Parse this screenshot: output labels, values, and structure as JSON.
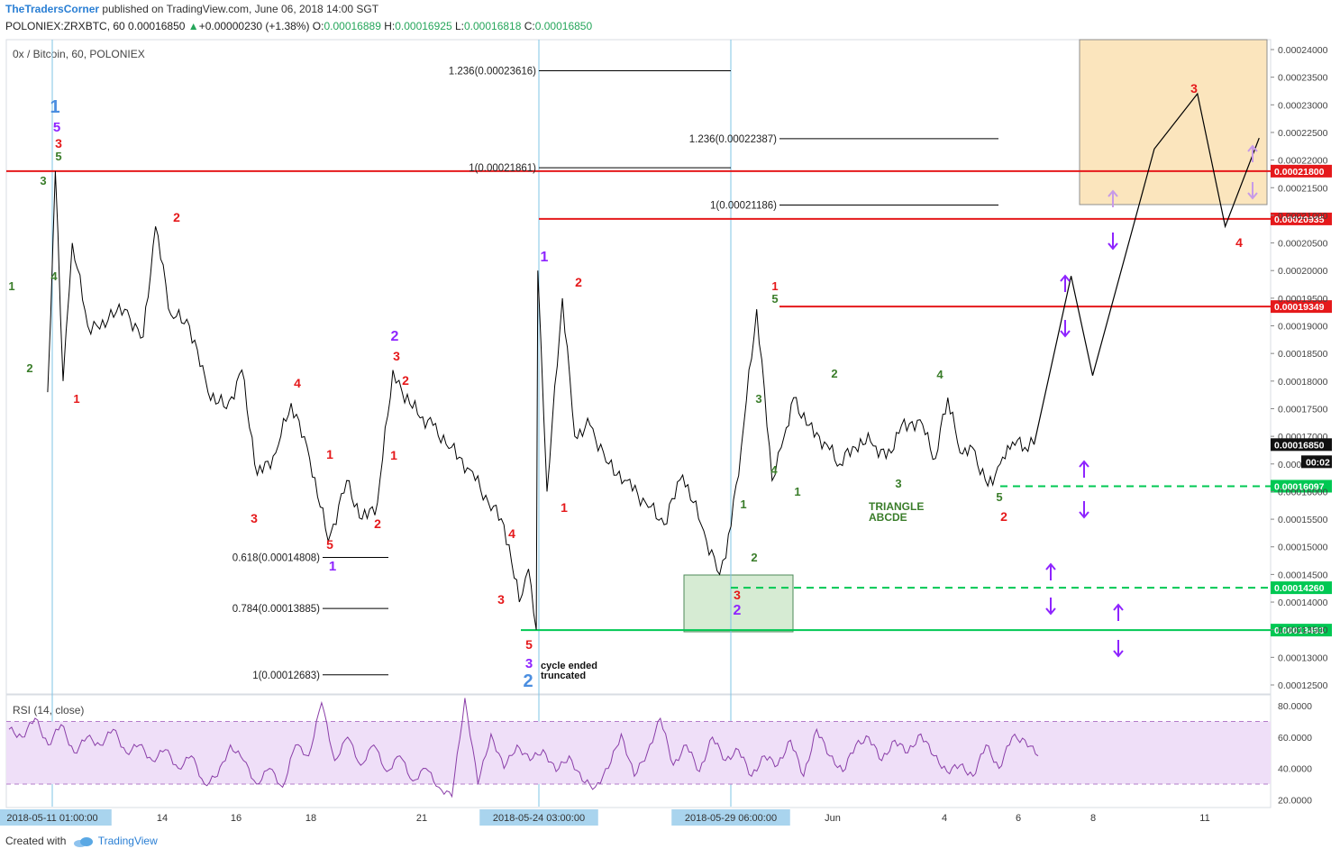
{
  "header": {
    "author": "TheTradersCorner",
    "published": "published on TradingView.com, June 06, 2018 14:00 SGT",
    "symbol": "POLONIEX:ZRXBTC, 60",
    "last": "0.00016850",
    "change_arrow": "▲",
    "change": "+0.00000230 (+1.38%)",
    "o_label": "O:",
    "o": "0.00016889",
    "h_label": "H:",
    "h": "0.00016925",
    "l_label": "L:",
    "l": "0.00016818",
    "c_label": "C:",
    "c": "0.00016850"
  },
  "pane_title": "0x / Bitcoin, 60, POLONIEX",
  "footer": {
    "created": "Created with",
    "brand": "TradingView",
    "logo_icon": "tradingview-cloud-icon"
  },
  "colors": {
    "red": "#e5191b",
    "green": "#00c853",
    "purple": "#8e24ff",
    "blue": "#4a8ee0",
    "olive": "#3a7d2a",
    "price_line": "#000000",
    "rsi": "#8a3ea8",
    "rsi_band": "#efdff8"
  },
  "chart_data": {
    "type": "line",
    "x_ticks": [
      "2018-05-11 01:00:00",
      "14",
      "16",
      "18",
      "21",
      "2018-05-24 03:00:00",
      "2018-05-29 06:00:00",
      "Jun",
      "4",
      "6",
      "8",
      "11"
    ],
    "y_ticks": [
      "0.00024000",
      "0.00023500",
      "0.00023000",
      "0.00022500",
      "0.00022000",
      "0.00021500",
      "0.00021000",
      "0.00020500",
      "0.00020000",
      "0.00019500",
      "0.00019000",
      "0.00018500",
      "0.00018000",
      "0.00017500",
      "0.00017000",
      "0.00016500",
      "0.00016000",
      "0.00015500",
      "0.00015000",
      "0.00014500",
      "0.00014000",
      "0.00013500",
      "0.00013000",
      "0.00012500"
    ],
    "ylim": [
      0.0001225,
      0.0002425
    ],
    "price_series": {
      "x": [
        "2018-05-10 22:00",
        "2018-05-11 00:00",
        "2018-05-11 03:00",
        "2018-05-11 08:00",
        "2018-05-11 14:00",
        "2018-05-12 00:00",
        "2018-05-12 06:00",
        "2018-05-13 00:00",
        "2018-05-13 12:00",
        "2018-05-13 20:00",
        "2018-05-14 06:00",
        "2018-05-14 18:00",
        "2018-05-15 06:00",
        "2018-05-15 18:00",
        "2018-05-16 04:00",
        "2018-05-16 14:00",
        "2018-05-17 02:00",
        "2018-05-17 12:00",
        "2018-05-18 00:00",
        "2018-05-18 12:00",
        "2018-05-19 00:00",
        "2018-05-19 10:00",
        "2018-05-19 20:00",
        "2018-05-20 06:00",
        "2018-05-20 12:00",
        "2018-05-20 22:00",
        "2018-05-21 08:00",
        "2018-05-21 20:00",
        "2018-05-22 08:00",
        "2018-05-22 20:00",
        "2018-05-23 06:00",
        "2018-05-23 16:00",
        "2018-05-23 22:00",
        "2018-05-24 03:00",
        "2018-05-24 04:00",
        "2018-05-24 10:00",
        "2018-05-24 20:00",
        "2018-05-25 04:00",
        "2018-05-25 14:00",
        "2018-05-26 02:00",
        "2018-05-26 14:00",
        "2018-05-27 02:00",
        "2018-05-27 14:00",
        "2018-05-28 02:00",
        "2018-05-28 14:00",
        "2018-05-29 02:00",
        "2018-05-29 06:00",
        "2018-05-29 16:00",
        "2018-05-30 02:00",
        "2018-05-30 12:00",
        "2018-05-30 18:00",
        "2018-05-31 02:00",
        "2018-05-31 12:00",
        "2018-05-31 22:00",
        "2018-06-01 08:00",
        "2018-06-01 18:00",
        "2018-06-02 04:00",
        "2018-06-02 14:00",
        "2018-06-03 00:00",
        "2018-06-03 12:00",
        "2018-06-03 22:00",
        "2018-06-04 06:00",
        "2018-06-04 14:00",
        "2018-06-04 22:00",
        "2018-06-05 08:00",
        "2018-06-05 16:00",
        "2018-06-06 00:00",
        "2018-06-06 08:00",
        "2018-06-06 14:00"
      ],
      "y": [
        0.000178,
        0.000192,
        0.000218,
        0.00018,
        0.000205,
        0.00019,
        0.00019,
        0.000193,
        0.000188,
        0.000208,
        0.000192,
        0.00019,
        0.000178,
        0.000175,
        0.000182,
        0.000163,
        0.000167,
        0.000176,
        0.000166,
        0.000151,
        0.000162,
        0.000155,
        0.000158,
        0.000182,
        0.000178,
        0.000174,
        0.000172,
        0.000168,
        0.000164,
        0.000158,
        0.000154,
        0.00014,
        0.000146,
        0.000135,
        0.0002,
        0.00016,
        0.000195,
        0.00017,
        0.000172,
        0.000165,
        0.000162,
        0.000158,
        0.000154,
        0.000163,
        0.000154,
        0.000145,
        0.000148,
        0.000168,
        0.000193,
        0.000162,
        0.000168,
        0.000177,
        0.000172,
        0.000169,
        0.000165,
        0.000168,
        0.000169,
        0.000166,
        0.000172,
        0.000173,
        0.000166,
        0.000177,
        0.000167,
        0.000168,
        0.000161,
        0.000165,
        0.000169,
        0.000168,
        0.0001685
      ]
    },
    "projection": {
      "x": [
        "2018-06-06 14:00",
        "2018-06-07 14:00",
        "2018-06-08 04:00",
        "2018-06-09 20:00",
        "2018-06-11 00:00",
        "2018-06-11 18:00",
        "2018-06-12 16:00"
      ],
      "y": [
        0.0001685,
        0.000199,
        0.000181,
        0.000222,
        0.000232,
        0.000208,
        0.000224
      ]
    },
    "horizontal_levels": [
      {
        "value": "0.00021800",
        "color": "red",
        "style": "solid"
      },
      {
        "value": "0.00020935",
        "color": "red",
        "style": "solid"
      },
      {
        "value": "0.00019349",
        "color": "red",
        "style": "solid"
      },
      {
        "value": "0.00016097",
        "color": "green",
        "style": "dashed"
      },
      {
        "value": "0.00014260",
        "color": "green",
        "style": "dashed"
      },
      {
        "value": "0.00013493",
        "color": "green",
        "style": "solid"
      }
    ],
    "current_price": {
      "value": "0.00016850",
      "countdown": "00:02"
    },
    "fib_levels": [
      {
        "text": "1.236(0.00023616)",
        "value": 0.00023616
      },
      {
        "text": "1(0.00021861)",
        "value": 0.00021861
      },
      {
        "text": "1.236(0.00022387)",
        "value": 0.00022387
      },
      {
        "text": "1(0.00021186)",
        "value": 0.00021186
      },
      {
        "text": "0.618(0.00014808)",
        "value": 0.00014808
      },
      {
        "text": "0.784(0.00013885)",
        "value": 0.00013885
      },
      {
        "text": "1(0.00012683)",
        "value": 0.00012683
      }
    ],
    "zones": [
      {
        "name": "target-zone",
        "color": "#fbe5bd",
        "y_range": [
          0.0002119,
          0.0002425
        ]
      },
      {
        "name": "support-zone",
        "color": "#d6ebd3",
        "y_range": [
          0.0001345,
          0.000145
        ]
      }
    ],
    "annotations": [
      {
        "text": "cycle ended"
      },
      {
        "text": "truncated"
      },
      {
        "text": "TRIANGLE"
      },
      {
        "text": "ABCDE"
      }
    ],
    "wave_labels": [
      {
        "t": "1",
        "c": "blue"
      },
      {
        "t": "5",
        "c": "purple"
      },
      {
        "t": "3",
        "c": "red"
      },
      {
        "t": "5",
        "c": "olive"
      },
      {
        "t": "3",
        "c": "olive"
      },
      {
        "t": "4",
        "c": "olive"
      },
      {
        "t": "1",
        "c": "olive"
      },
      {
        "t": "2",
        "c": "olive"
      },
      {
        "t": "1",
        "c": "red"
      },
      {
        "t": "2",
        "c": "red"
      },
      {
        "t": "3",
        "c": "red"
      },
      {
        "t": "4",
        "c": "red"
      },
      {
        "t": "1",
        "c": "red"
      },
      {
        "t": "5",
        "c": "red"
      },
      {
        "t": "1",
        "c": "purple"
      },
      {
        "t": "2",
        "c": "red"
      },
      {
        "t": "2",
        "c": "purple"
      },
      {
        "t": "3",
        "c": "red"
      },
      {
        "t": "2",
        "c": "red"
      },
      {
        "t": "1",
        "c": "red"
      },
      {
        "t": "4",
        "c": "red"
      },
      {
        "t": "3",
        "c": "red"
      },
      {
        "t": "5",
        "c": "red"
      },
      {
        "t": "3",
        "c": "purple"
      },
      {
        "t": "2",
        "c": "blue"
      },
      {
        "t": "1",
        "c": "purple"
      },
      {
        "t": "2",
        "c": "red"
      },
      {
        "t": "1",
        "c": "red"
      },
      {
        "t": "1",
        "c": "red"
      },
      {
        "t": "5",
        "c": "olive"
      },
      {
        "t": "3",
        "c": "olive"
      },
      {
        "t": "4",
        "c": "olive"
      },
      {
        "t": "1",
        "c": "olive"
      },
      {
        "t": "2",
        "c": "olive"
      },
      {
        "t": "3",
        "c": "red"
      },
      {
        "t": "2",
        "c": "purple"
      },
      {
        "t": "1",
        "c": "olive"
      },
      {
        "t": "2",
        "c": "olive"
      },
      {
        "t": "3",
        "c": "olive"
      },
      {
        "t": "4",
        "c": "olive"
      },
      {
        "t": "5",
        "c": "olive"
      },
      {
        "t": "2",
        "c": "red"
      },
      {
        "t": "3",
        "c": "red"
      },
      {
        "t": "4",
        "c": "red"
      }
    ],
    "rsi": {
      "label": "RSI (14, close)",
      "ticks": [
        "80.0000",
        "60.0000",
        "40.0000",
        "20.0000"
      ],
      "ylim": [
        15,
        87
      ],
      "band": [
        30,
        70
      ],
      "values": [
        65,
        60,
        72,
        55,
        68,
        50,
        60,
        55,
        65,
        50,
        55,
        45,
        52,
        40,
        48,
        30,
        35,
        55,
        45,
        30,
        40,
        28,
        55,
        48,
        82,
        45,
        60,
        42,
        55,
        38,
        48,
        32,
        40,
        28,
        22,
        85,
        30,
        62,
        40,
        55,
        45,
        52,
        38,
        48,
        32,
        28,
        40,
        62,
        35,
        50,
        72,
        42,
        55,
        38,
        60,
        45,
        52,
        35,
        48,
        42,
        58,
        35,
        65,
        48,
        38,
        55,
        60,
        45,
        58,
        50,
        62,
        48,
        38,
        42,
        35,
        55,
        40,
        60,
        58,
        48
      ]
    }
  }
}
